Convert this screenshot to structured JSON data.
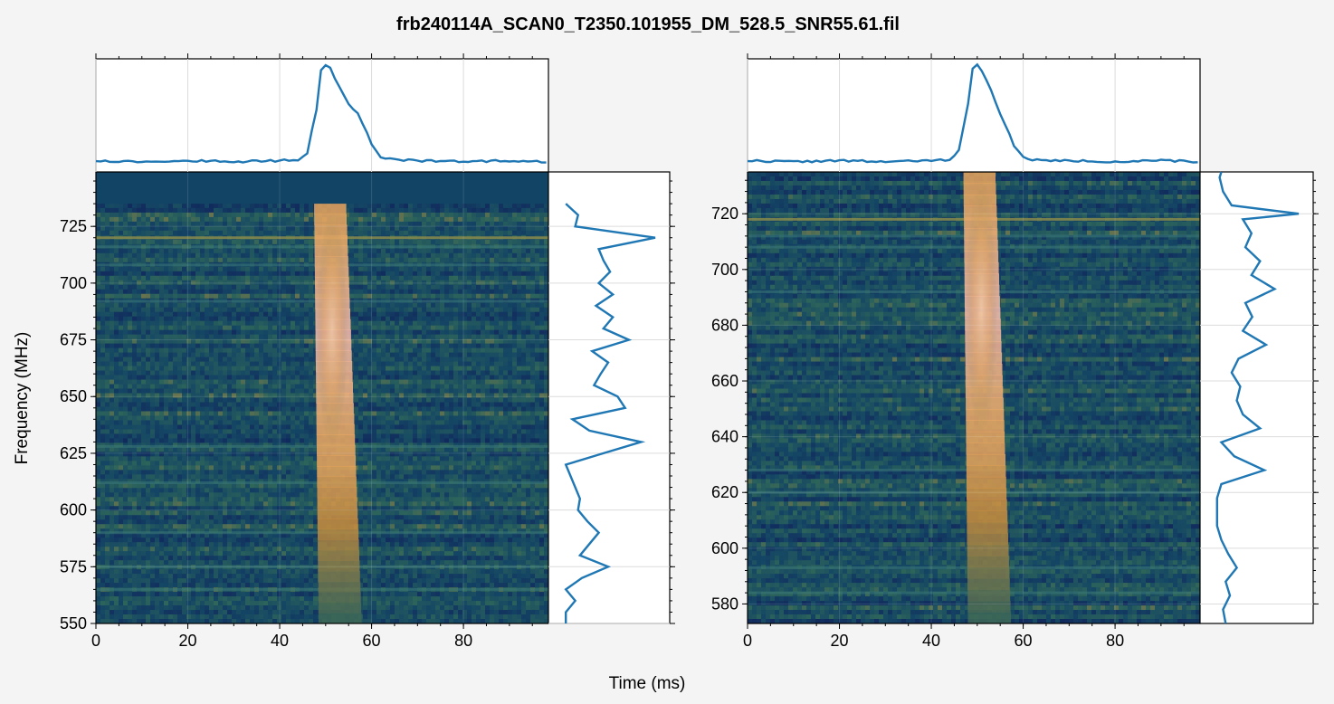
{
  "figure": {
    "title": "frb240114A_SCAN0_T2350.101955_DM_528.5_SNR55.61.fil",
    "xlabel": "Time (ms)",
    "ylabel": "Frequency (MHz)"
  },
  "colors": {
    "line": "#1f77b4",
    "background": "#f4f4f4",
    "grid": "#dcdcdc",
    "frame": "#000000"
  },
  "chart_data": [
    {
      "type": "heatmap",
      "panel": "left",
      "xlabel": "Time (ms)",
      "ylabel": "Frequency (MHz)",
      "xlim": [
        0,
        98.5
      ],
      "ylim": [
        550,
        749
      ],
      "xticks": [
        0,
        20,
        40,
        60,
        80
      ],
      "yticks": [
        550,
        575,
        600,
        625,
        650,
        675,
        700,
        725
      ],
      "masked_band_mhz": [
        735,
        749
      ],
      "pulse_center_ms": 51,
      "pulse_width_ms": 7,
      "rfi_lines_mhz": [
        720,
        716,
        708,
        692,
        628,
        612,
        590,
        575,
        565
      ],
      "time_series": {
        "x": [
          0,
          10,
          20,
          30,
          40,
          44,
          46,
          48,
          49,
          50,
          51,
          52,
          53,
          54,
          55,
          56,
          57,
          58,
          60,
          62,
          65,
          70,
          80,
          90,
          98
        ],
        "y": [
          0.04,
          0.03,
          0.04,
          0.03,
          0.04,
          0.05,
          0.12,
          0.55,
          0.95,
          1.0,
          0.96,
          0.86,
          0.78,
          0.68,
          0.6,
          0.56,
          0.52,
          0.42,
          0.2,
          0.08,
          0.05,
          0.04,
          0.03,
          0.04,
          0.03
        ]
      },
      "spectrum": {
        "freq": [
          550,
          555,
          560,
          565,
          570,
          575,
          580,
          585,
          590,
          595,
          600,
          605,
          610,
          615,
          620,
          625,
          630,
          635,
          640,
          645,
          650,
          655,
          660,
          665,
          670,
          675,
          680,
          685,
          690,
          695,
          700,
          705,
          710,
          715,
          720,
          725,
          730,
          735
        ],
        "value": [
          0.05,
          0.05,
          0.15,
          0.05,
          0.22,
          0.5,
          0.2,
          0.3,
          0.4,
          0.28,
          0.18,
          0.2,
          0.15,
          0.1,
          0.05,
          0.45,
          0.85,
          0.3,
          0.12,
          0.68,
          0.6,
          0.35,
          0.42,
          0.5,
          0.33,
          0.72,
          0.45,
          0.55,
          0.37,
          0.55,
          0.4,
          0.52,
          0.45,
          0.4,
          1.0,
          0.15,
          0.18,
          0.05
        ]
      }
    },
    {
      "type": "heatmap",
      "panel": "right",
      "xlabel": "Time (ms)",
      "ylabel": "Frequency (MHz)",
      "xlim": [
        0,
        98.5
      ],
      "ylim": [
        573,
        735
      ],
      "xticks": [
        0,
        20,
        40,
        60,
        80
      ],
      "yticks": [
        580,
        600,
        620,
        640,
        660,
        680,
        700,
        720
      ],
      "masked_band_mhz": [],
      "pulse_center_ms": 50.5,
      "pulse_width_ms": 7,
      "rfi_lines_mhz": [
        718,
        712,
        708,
        692,
        628,
        620,
        593,
        584
      ],
      "time_series": {
        "x": [
          0,
          10,
          20,
          30,
          40,
          44,
          46,
          48,
          49,
          50,
          51,
          52,
          53,
          54,
          55,
          56,
          57,
          58,
          60,
          62,
          65,
          70,
          80,
          90,
          98
        ],
        "y": [
          0.04,
          0.03,
          0.04,
          0.03,
          0.04,
          0.05,
          0.14,
          0.6,
          0.96,
          1.0,
          0.94,
          0.85,
          0.74,
          0.62,
          0.5,
          0.4,
          0.3,
          0.18,
          0.08,
          0.05,
          0.04,
          0.04,
          0.03,
          0.04,
          0.03
        ]
      },
      "spectrum": {
        "freq": [
          573,
          578,
          583,
          588,
          593,
          598,
          603,
          608,
          613,
          618,
          623,
          628,
          633,
          638,
          643,
          648,
          653,
          658,
          663,
          668,
          673,
          678,
          683,
          688,
          693,
          698,
          703,
          708,
          713,
          718,
          720,
          723,
          728,
          733,
          735
        ],
        "value": [
          0.15,
          0.12,
          0.2,
          0.15,
          0.28,
          0.18,
          0.1,
          0.05,
          0.05,
          0.05,
          0.1,
          0.6,
          0.25,
          0.1,
          0.55,
          0.35,
          0.28,
          0.32,
          0.22,
          0.3,
          0.62,
          0.35,
          0.46,
          0.38,
          0.72,
          0.45,
          0.55,
          0.38,
          0.45,
          0.35,
          1.0,
          0.22,
          0.12,
          0.08,
          0.1
        ]
      }
    }
  ]
}
